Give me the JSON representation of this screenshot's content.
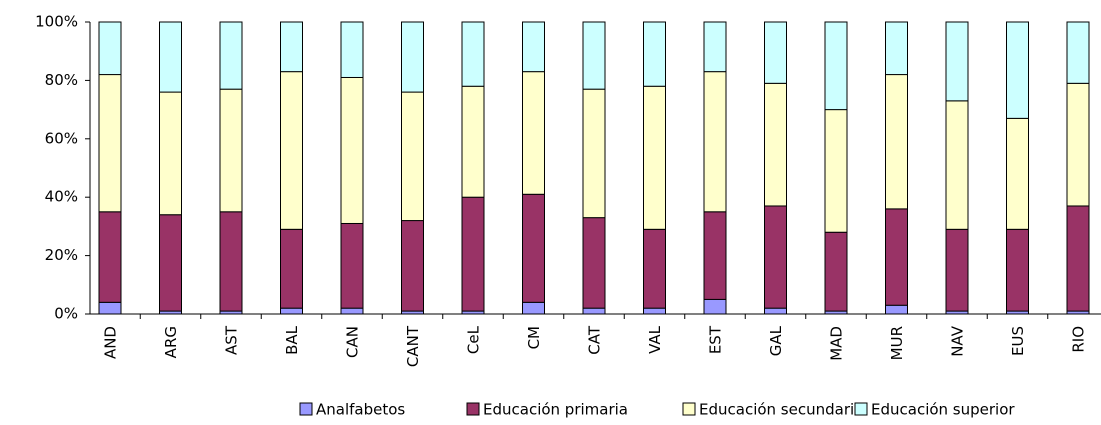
{
  "chart_data": {
    "type": "stacked_bar",
    "categories": [
      "AND",
      "ARG",
      "AST",
      "BAL",
      "CAN",
      "CANT",
      "CeL",
      "CM",
      "CAT",
      "VAL",
      "EST",
      "GAL",
      "MAD",
      "MUR",
      "NAV",
      "EUS",
      "RIO"
    ],
    "series": [
      {
        "name": "Analfabetos",
        "color": "#9999ff",
        "values": [
          4,
          1,
          1,
          2,
          2,
          1,
          1,
          4,
          2,
          2,
          5,
          2,
          1,
          3,
          1,
          1,
          1
        ]
      },
      {
        "name": "Educación primaria",
        "color": "#993366",
        "values": [
          31,
          33,
          34,
          27,
          29,
          31,
          39,
          37,
          31,
          27,
          30,
          35,
          27,
          33,
          28,
          28,
          36
        ]
      },
      {
        "name": "Educación secundaria",
        "color": "#ffffcc",
        "values": [
          47,
          42,
          42,
          54,
          50,
          44,
          38,
          42,
          44,
          49,
          48,
          42,
          42,
          46,
          44,
          38,
          42
        ]
      },
      {
        "name": "Educación superior",
        "color": "#ccffff",
        "values": [
          18,
          24,
          23,
          17,
          19,
          24,
          22,
          17,
          23,
          22,
          17,
          21,
          30,
          18,
          27,
          33,
          21
        ]
      }
    ],
    "ylim": [
      0,
      100
    ],
    "yticks": [
      {
        "value": 0,
        "label": "0%"
      },
      {
        "value": 20,
        "label": "20%"
      },
      {
        "value": 40,
        "label": "40%"
      },
      {
        "value": 60,
        "label": "60%"
      },
      {
        "value": 80,
        "label": "80%"
      },
      {
        "value": 100,
        "label": "100%"
      }
    ]
  }
}
